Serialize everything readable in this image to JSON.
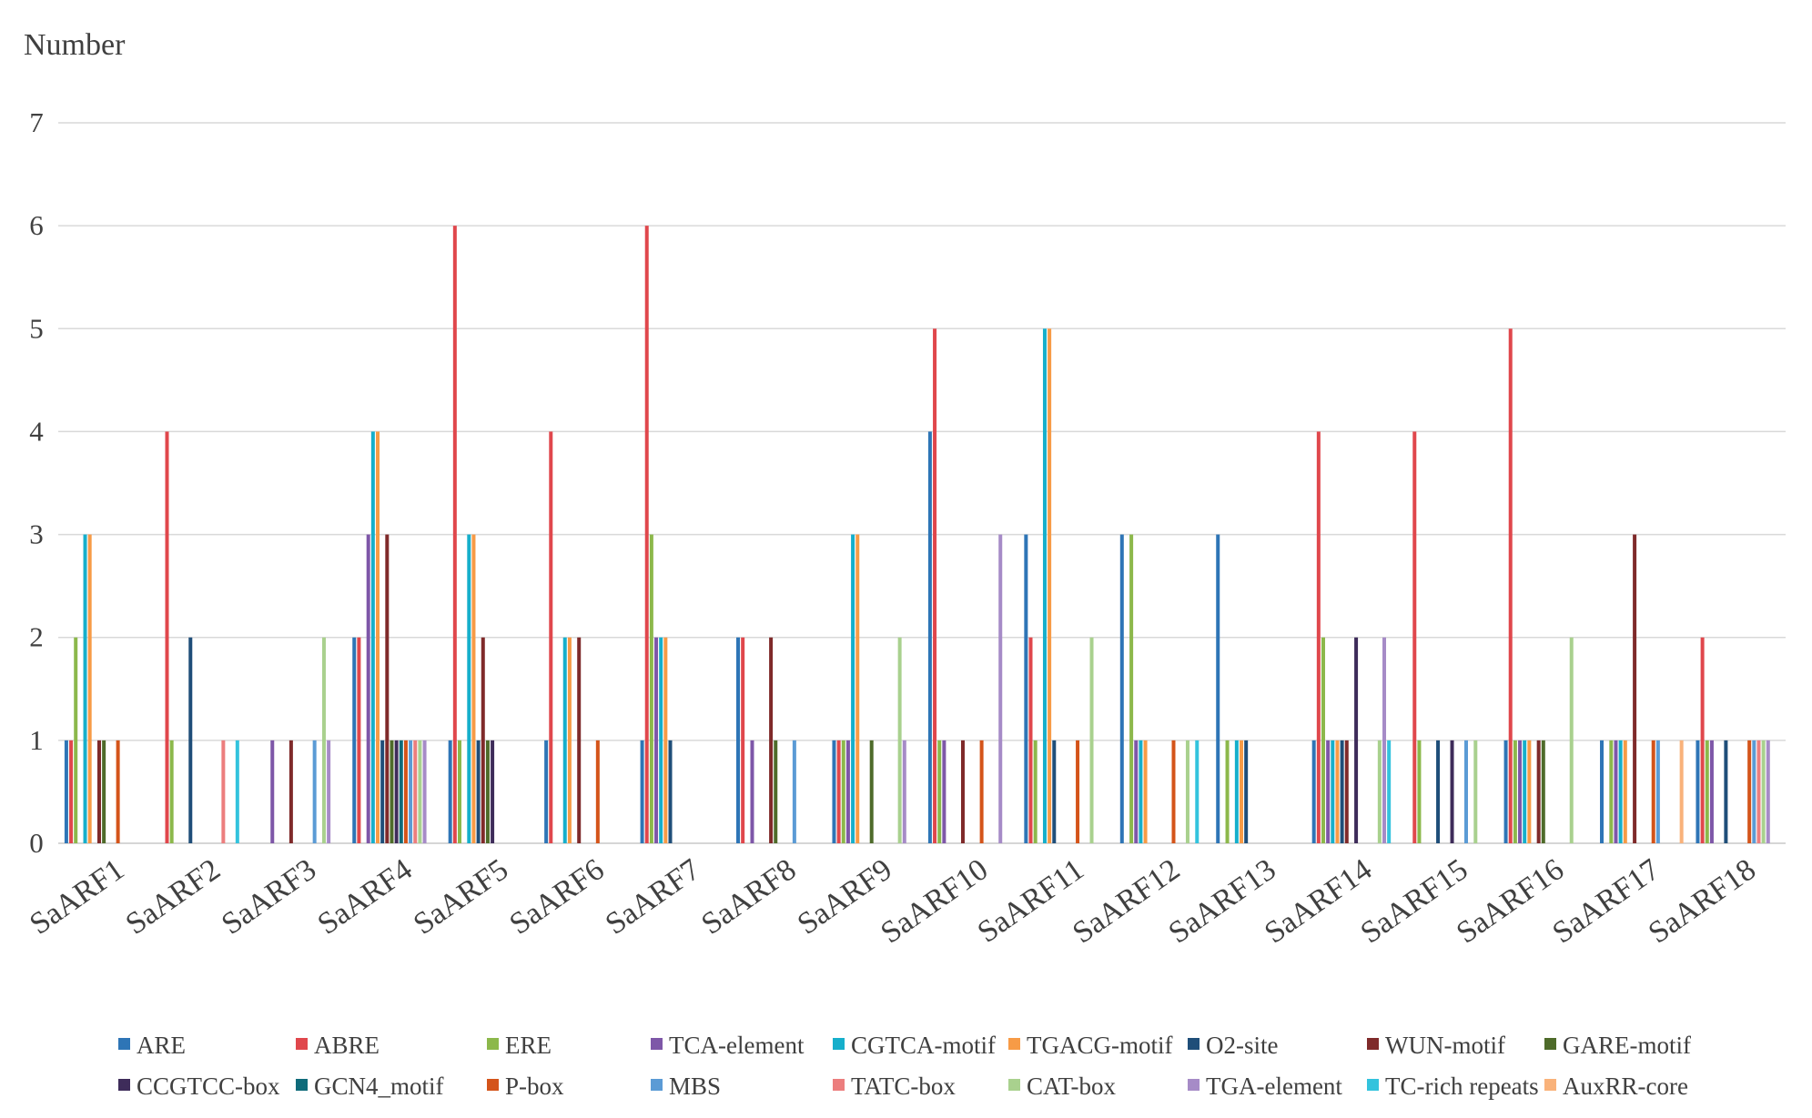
{
  "chart_data": {
    "type": "bar",
    "title": "",
    "ylabel": "Number",
    "xlabel": "",
    "ylim": [
      0,
      7
    ],
    "yticks": [
      0,
      1,
      2,
      3,
      4,
      5,
      6,
      7
    ],
    "grid": true,
    "legend_position": "bottom",
    "categories": [
      "SaARF1",
      "SaARF2",
      "SaARF3",
      "SaARF4",
      "SaARF5",
      "SaARF6",
      "SaARF7",
      "SaARF8",
      "SaARF9",
      "SaARF10",
      "SaARF11",
      "SaARF12",
      "SaARF13",
      "SaARF14",
      "SaARF15",
      "SaARF16",
      "SaARF17",
      "SaARF18"
    ],
    "series": [
      {
        "name": "ARE",
        "color": "#2E75B6",
        "values": [
          1,
          0,
          0,
          2,
          1,
          1,
          1,
          2,
          1,
          4,
          3,
          3,
          3,
          1,
          0,
          1,
          1,
          1
        ]
      },
      {
        "name": "ABRE",
        "color": "#E0474C",
        "values": [
          1,
          4,
          0,
          2,
          6,
          4,
          6,
          2,
          1,
          5,
          2,
          0,
          0,
          4,
          4,
          5,
          0,
          2
        ]
      },
      {
        "name": "ERE",
        "color": "#8CB84B",
        "values": [
          2,
          1,
          0,
          0,
          1,
          0,
          3,
          0,
          1,
          1,
          1,
          3,
          1,
          2,
          1,
          1,
          1,
          1
        ]
      },
      {
        "name": "TCA-element",
        "color": "#7E57A8",
        "values": [
          0,
          0,
          1,
          3,
          0,
          0,
          2,
          1,
          1,
          1,
          0,
          1,
          0,
          1,
          0,
          1,
          1,
          1
        ]
      },
      {
        "name": "CGTCA-motif",
        "color": "#16AFCB",
        "values": [
          3,
          0,
          0,
          4,
          3,
          2,
          2,
          0,
          3,
          0,
          5,
          1,
          1,
          1,
          0,
          1,
          1,
          0
        ]
      },
      {
        "name": "TGACG-motif",
        "color": "#F79B46",
        "values": [
          3,
          0,
          0,
          4,
          3,
          2,
          2,
          0,
          3,
          0,
          5,
          1,
          1,
          1,
          0,
          1,
          1,
          0
        ]
      },
      {
        "name": "O2-site",
        "color": "#1F4E79",
        "values": [
          0,
          2,
          0,
          1,
          1,
          0,
          1,
          0,
          0,
          0,
          1,
          0,
          1,
          1,
          1,
          0,
          0,
          1
        ]
      },
      {
        "name": "WUN-motif",
        "color": "#7F2A2A",
        "values": [
          1,
          0,
          1,
          3,
          2,
          2,
          0,
          2,
          0,
          1,
          0,
          0,
          0,
          1,
          0,
          1,
          3,
          0
        ]
      },
      {
        "name": "GARE-motif",
        "color": "#4E6B2A",
        "values": [
          1,
          0,
          0,
          1,
          1,
          0,
          0,
          1,
          1,
          0,
          0,
          0,
          0,
          0,
          0,
          1,
          0,
          0
        ]
      },
      {
        "name": "CCGTCC-box",
        "color": "#3E2C5A",
        "values": [
          0,
          0,
          0,
          1,
          1,
          0,
          0,
          0,
          0,
          0,
          0,
          0,
          0,
          2,
          1,
          0,
          0,
          0
        ]
      },
      {
        "name": "GCN4_motif",
        "color": "#0F6B7A",
        "values": [
          0,
          0,
          0,
          1,
          0,
          0,
          0,
          0,
          0,
          0,
          0,
          0,
          0,
          0,
          0,
          0,
          0,
          0
        ]
      },
      {
        "name": "P-box",
        "color": "#D4541A",
        "values": [
          1,
          0,
          0,
          1,
          0,
          1,
          0,
          0,
          0,
          1,
          1,
          1,
          0,
          0,
          0,
          0,
          1,
          1
        ]
      },
      {
        "name": "MBS",
        "color": "#5B9BD5",
        "values": [
          0,
          0,
          1,
          1,
          0,
          0,
          0,
          1,
          0,
          0,
          0,
          0,
          0,
          0,
          1,
          0,
          1,
          1
        ]
      },
      {
        "name": "TATC-box",
        "color": "#EC7E7E",
        "values": [
          0,
          1,
          0,
          1,
          0,
          0,
          0,
          0,
          0,
          0,
          0,
          0,
          0,
          0,
          0,
          0,
          0,
          1
        ]
      },
      {
        "name": "CAT-box",
        "color": "#A9D18E",
        "values": [
          0,
          0,
          2,
          1,
          0,
          0,
          0,
          0,
          2,
          0,
          2,
          1,
          0,
          1,
          1,
          2,
          0,
          1
        ]
      },
      {
        "name": "TGA-element",
        "color": "#A68BC7",
        "values": [
          0,
          0,
          1,
          1,
          0,
          0,
          0,
          0,
          1,
          3,
          0,
          0,
          0,
          2,
          0,
          0,
          0,
          1
        ]
      },
      {
        "name": "TC-rich repeats",
        "color": "#33C3DD",
        "values": [
          0,
          1,
          0,
          0,
          0,
          0,
          0,
          0,
          0,
          0,
          0,
          1,
          0,
          1,
          0,
          0,
          0,
          0
        ]
      },
      {
        "name": "AuxRR-core",
        "color": "#F9B27A",
        "values": [
          0,
          0,
          0,
          0,
          0,
          0,
          0,
          0,
          0,
          0,
          0,
          0,
          0,
          0,
          0,
          0,
          1,
          0
        ]
      }
    ]
  }
}
